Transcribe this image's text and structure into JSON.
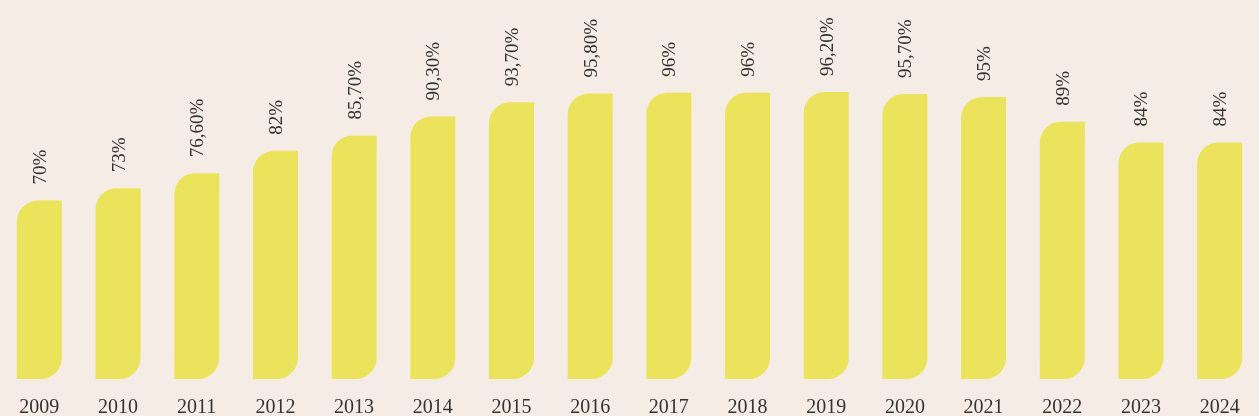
{
  "chart_data": {
    "type": "bar",
    "categories": [
      "2009",
      "2010",
      "2011",
      "2012",
      "2013",
      "2014",
      "2015",
      "2016",
      "2017",
      "2018",
      "2019",
      "2020",
      "2021",
      "2022",
      "2023",
      "2024"
    ],
    "values": [
      70,
      73,
      76.6,
      82,
      85.7,
      90.3,
      93.7,
      95.8,
      96,
      96,
      96.2,
      95.7,
      95,
      89,
      84,
      84
    ],
    "value_labels": [
      "70%",
      "73%",
      "76,60%",
      "82%",
      "85,70%",
      "90,30%",
      "93,70%",
      "95,80%",
      "96%",
      "96%",
      "96,20%",
      "95,70%",
      "95%",
      "89%",
      "84%",
      "84%"
    ],
    "color": "#ebe35c",
    "ylim": [
      27,
      96.2
    ],
    "tick_labels": "x"
  }
}
